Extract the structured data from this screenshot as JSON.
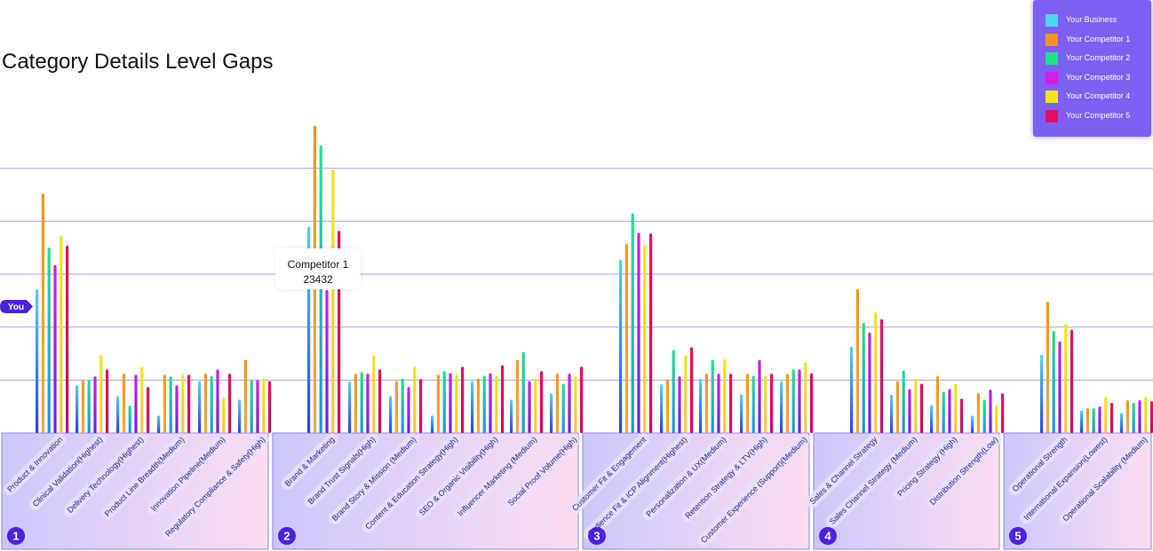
{
  "chart_data": {
    "type": "bar",
    "title": "Category Details Level Gaps",
    "ylim": [
      0,
      600
    ],
    "grid": true,
    "legend_position": "top-right",
    "series": [
      {
        "name": "Your Business",
        "color": "#4fd3f0"
      },
      {
        "name": "Your Competitor 1",
        "color": "#f7941d"
      },
      {
        "name": "Your Competitor 2",
        "color": "#22e08a"
      },
      {
        "name": "Your Competitor 3",
        "color": "#d21ee3"
      },
      {
        "name": "Your Competitor 4",
        "color": "#f2e417"
      },
      {
        "name": "Your Competitor 5",
        "color": "#e0115f"
      }
    ],
    "groups": [
      {
        "badge": "1",
        "categories": [
          {
            "name": "Product & Innovation",
            "values": [
              272,
              452,
              350,
              317,
              372,
              354
            ]
          },
          {
            "name": "Clinical Validation(Highest)",
            "values": [
              90,
              100,
              100,
              107,
              147,
              120
            ]
          },
          {
            "name": "Delivery Technology(Highest)",
            "values": [
              70,
              112,
              52,
              110,
              125,
              87
            ]
          },
          {
            "name": "Product Line Breadth(Medium)",
            "values": [
              33,
              110,
              107,
              90,
              110,
              110
            ]
          },
          {
            "name": "Innovation Pipeline(Medium)",
            "values": [
              98,
              112,
              108,
              120,
              67,
              112
            ]
          },
          {
            "name": "Regulatory Compliance & Safety(High)",
            "values": [
              63,
              138,
              100,
              100,
              103,
              98
            ]
          }
        ]
      },
      {
        "badge": "2",
        "categories": [
          {
            "name": "Brand & Marketing",
            "values": [
              390,
              580,
              543,
              270,
              498,
              382
            ]
          },
          {
            "name": "Brand Trust Signals(High)",
            "values": [
              97,
              112,
              115,
              112,
              147,
              120
            ]
          },
          {
            "name": "Brand Story & Mission (Medium)",
            "values": [
              70,
              98,
              103,
              87,
              125,
              102
            ]
          },
          {
            "name": "Content & Education Strategy(High)",
            "values": [
              33,
              110,
              117,
              113,
              110,
              125
            ]
          },
          {
            "name": "SEO & Organic Visibility(High)",
            "values": [
              98,
              103,
              108,
              113,
              108,
              128
            ]
          },
          {
            "name": "Influencer Marketing (Medium)",
            "values": [
              63,
              138,
              153,
              98,
              103,
              117
            ]
          },
          {
            "name": "Social Proof Volume(High)",
            "values": [
              75,
              112,
              93,
              112,
              107,
              125
            ]
          }
        ]
      },
      {
        "badge": "3",
        "categories": [
          {
            "name": "Customer Fit & Engagement",
            "values": [
              327,
              357,
              415,
              378,
              355,
              377
            ]
          },
          {
            "name": "Audience Fit & ICP Alignment(Highest)",
            "values": [
              92,
              100,
              157,
              107,
              147,
              162
            ]
          },
          {
            "name": "Personalization & UX(Medium)",
            "values": [
              102,
              112,
              138,
              112,
              140,
              112
            ]
          },
          {
            "name": "Retention Strategy & LTV(High)",
            "values": [
              73,
              112,
              108,
              138,
              108,
              112
            ]
          },
          {
            "name": "Customer Experience (Support)(Medium)",
            "values": [
              98,
              112,
              120,
              120,
              133,
              113
            ]
          }
        ]
      },
      {
        "badge": "4",
        "categories": [
          {
            "name": "Sales & Channel Strategy",
            "values": [
              163,
              272,
              208,
              190,
              228,
              215
            ]
          },
          {
            "name": "Sales Channel Strategy (Medium)",
            "values": [
              72,
              98,
              118,
              83,
              102,
              93
            ]
          },
          {
            "name": "Pricing Strategy (High)",
            "values": [
              53,
              107,
              78,
              83,
              93,
              65
            ]
          },
          {
            "name": "Distribution Strength(Low)",
            "values": [
              33,
              75,
              63,
              82,
              52,
              75
            ]
          }
        ]
      },
      {
        "badge": "5",
        "categories": [
          {
            "name": "Operational Strength",
            "values": [
              148,
              248,
              193,
              173,
              207,
              195
            ]
          },
          {
            "name": "International Expansion(Lowest)",
            "values": [
              43,
              47,
              47,
              50,
              68,
              57
            ]
          },
          {
            "name": "Operational Scalability (Medium)",
            "values": [
              38,
              62,
              57,
              62,
              68,
              60
            ]
          }
        ]
      }
    ],
    "tooltip": {
      "label": "Competitor 1",
      "value": "23432"
    },
    "you_marker": "You"
  }
}
